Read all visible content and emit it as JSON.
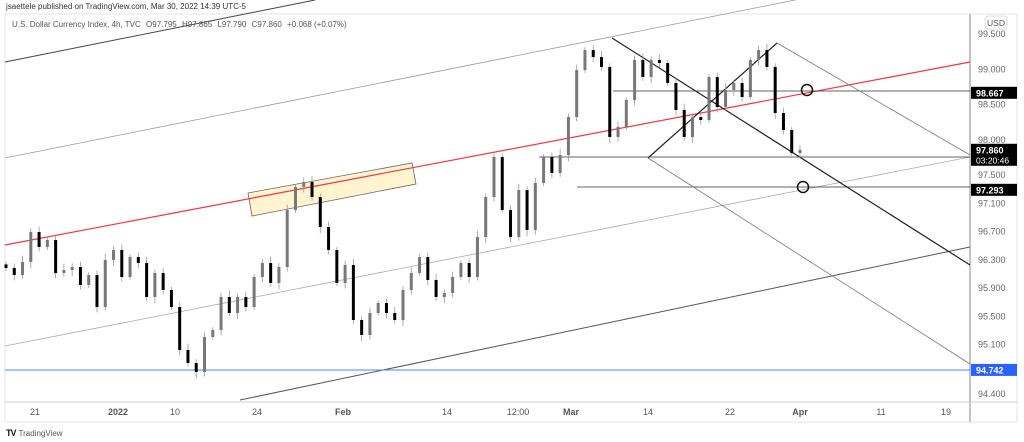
{
  "header": {
    "published": "jsaettele published on TradingView.com, Mar 30, 2022 14:39 UTC-5",
    "symbol": "U.S. Dollar Currency Index, 4h, TVC",
    "open": "O97.795",
    "high": "H97.865",
    "low": "L97.790",
    "close": "C97.860",
    "change": "+0.068 (+0.07%)"
  },
  "footer": {
    "brand": "TradingView",
    "logo": "tv-logo-icon"
  },
  "colors": {
    "trendline_red": "#f23645",
    "support_blue": "#2962ff",
    "zone_fill": "#fdf0c0",
    "down_candle": "#000000",
    "up_candle": "#787878"
  },
  "chart_data": {
    "type": "candlestick",
    "currency": "USD",
    "ylim": [
      94.2,
      99.8
    ],
    "y_ticks": [
      "99.500",
      "99.000",
      "98.500",
      "98.000",
      "97.500",
      "97.100",
      "96.700",
      "96.300",
      "95.900",
      "95.500",
      "95.100",
      "94.400"
    ],
    "x_ticks": [
      "21",
      "2022",
      "10",
      "24",
      "Feb",
      "14",
      "12:00",
      "Mar",
      "14",
      "22",
      "Apr",
      "11",
      "19"
    ],
    "closes": [
      96.186,
      96.086,
      96.271,
      96.695,
      96.483,
      96.582,
      96.115,
      96.157,
      96.2,
      95.945,
      96.086,
      95.633,
      96.299,
      96.441,
      96.058,
      96.341,
      96.256,
      95.775,
      96.115,
      95.874,
      95.633,
      95.024,
      94.84,
      94.712,
      95.208,
      95.307,
      95.775,
      95.548,
      95.775,
      95.633,
      96.058,
      96.256,
      95.973,
      96.2,
      97.007,
      97.333,
      97.404,
      97.191,
      96.766,
      96.441,
      95.973,
      96.228,
      95.449,
      95.237,
      95.548,
      95.69,
      95.548,
      95.449,
      95.874,
      96.115,
      96.341,
      96.016,
      95.775,
      95.831,
      96.058,
      96.256,
      96.058,
      96.625,
      97.191,
      97.758,
      97.007,
      96.625,
      97.29,
      96.724,
      97.39,
      97.758,
      97.531,
      97.786,
      98.324,
      98.99,
      99.273,
      99.174,
      99.033,
      98.041,
      98.183,
      98.565,
      99.132,
      98.891,
      99.132,
      99.089,
      98.806,
      98.424,
      98.041,
      98.324,
      98.282,
      98.891,
      98.466,
      98.707,
      98.806,
      98.608,
      99.132,
      99.273,
      99.033,
      98.381,
      98.14,
      97.814,
      97.86
    ],
    "price_labels": [
      {
        "value": "98.667",
        "style": "black"
      },
      {
        "value": "97.860",
        "sub": "03:20:46",
        "style": "black"
      },
      {
        "value": "97.293",
        "style": "black"
      },
      {
        "value": "94.742",
        "style": "blue"
      }
    ],
    "levels": [
      98.667,
      97.86,
      97.293,
      94.742
    ]
  }
}
